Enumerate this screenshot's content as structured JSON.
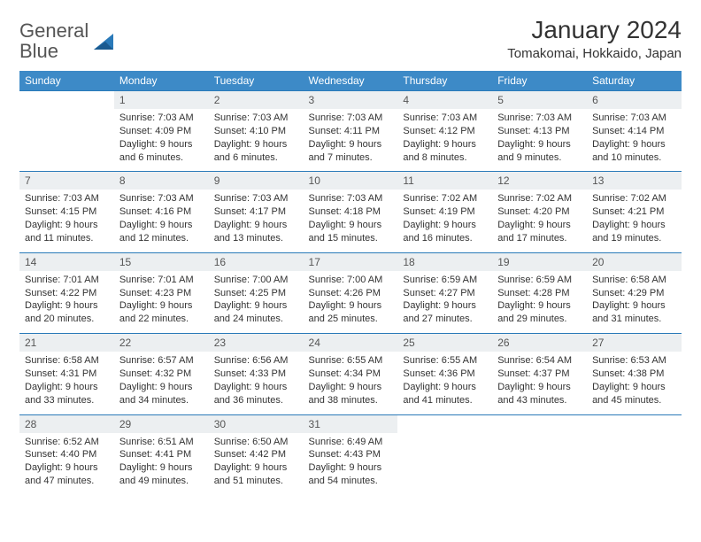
{
  "logo": {
    "general": "General",
    "blue": "Blue"
  },
  "title": "January 2024",
  "location": "Tomakomai, Hokkaido, Japan",
  "colors": {
    "header_bg": "#3d8ac7",
    "accent_line": "#2a7ab9",
    "daynum_bg": "#eceff1",
    "text": "#333333"
  },
  "weekdays": [
    "Sunday",
    "Monday",
    "Tuesday",
    "Wednesday",
    "Thursday",
    "Friday",
    "Saturday"
  ],
  "weeks": [
    [
      null,
      {
        "n": "1",
        "sr": "7:03 AM",
        "ss": "4:09 PM",
        "dl": "9 hours and 6 minutes."
      },
      {
        "n": "2",
        "sr": "7:03 AM",
        "ss": "4:10 PM",
        "dl": "9 hours and 6 minutes."
      },
      {
        "n": "3",
        "sr": "7:03 AM",
        "ss": "4:11 PM",
        "dl": "9 hours and 7 minutes."
      },
      {
        "n": "4",
        "sr": "7:03 AM",
        "ss": "4:12 PM",
        "dl": "9 hours and 8 minutes."
      },
      {
        "n": "5",
        "sr": "7:03 AM",
        "ss": "4:13 PM",
        "dl": "9 hours and 9 minutes."
      },
      {
        "n": "6",
        "sr": "7:03 AM",
        "ss": "4:14 PM",
        "dl": "9 hours and 10 minutes."
      }
    ],
    [
      {
        "n": "7",
        "sr": "7:03 AM",
        "ss": "4:15 PM",
        "dl": "9 hours and 11 minutes."
      },
      {
        "n": "8",
        "sr": "7:03 AM",
        "ss": "4:16 PM",
        "dl": "9 hours and 12 minutes."
      },
      {
        "n": "9",
        "sr": "7:03 AM",
        "ss": "4:17 PM",
        "dl": "9 hours and 13 minutes."
      },
      {
        "n": "10",
        "sr": "7:03 AM",
        "ss": "4:18 PM",
        "dl": "9 hours and 15 minutes."
      },
      {
        "n": "11",
        "sr": "7:02 AM",
        "ss": "4:19 PM",
        "dl": "9 hours and 16 minutes."
      },
      {
        "n": "12",
        "sr": "7:02 AM",
        "ss": "4:20 PM",
        "dl": "9 hours and 17 minutes."
      },
      {
        "n": "13",
        "sr": "7:02 AM",
        "ss": "4:21 PM",
        "dl": "9 hours and 19 minutes."
      }
    ],
    [
      {
        "n": "14",
        "sr": "7:01 AM",
        "ss": "4:22 PM",
        "dl": "9 hours and 20 minutes."
      },
      {
        "n": "15",
        "sr": "7:01 AM",
        "ss": "4:23 PM",
        "dl": "9 hours and 22 minutes."
      },
      {
        "n": "16",
        "sr": "7:00 AM",
        "ss": "4:25 PM",
        "dl": "9 hours and 24 minutes."
      },
      {
        "n": "17",
        "sr": "7:00 AM",
        "ss": "4:26 PM",
        "dl": "9 hours and 25 minutes."
      },
      {
        "n": "18",
        "sr": "6:59 AM",
        "ss": "4:27 PM",
        "dl": "9 hours and 27 minutes."
      },
      {
        "n": "19",
        "sr": "6:59 AM",
        "ss": "4:28 PM",
        "dl": "9 hours and 29 minutes."
      },
      {
        "n": "20",
        "sr": "6:58 AM",
        "ss": "4:29 PM",
        "dl": "9 hours and 31 minutes."
      }
    ],
    [
      {
        "n": "21",
        "sr": "6:58 AM",
        "ss": "4:31 PM",
        "dl": "9 hours and 33 minutes."
      },
      {
        "n": "22",
        "sr": "6:57 AM",
        "ss": "4:32 PM",
        "dl": "9 hours and 34 minutes."
      },
      {
        "n": "23",
        "sr": "6:56 AM",
        "ss": "4:33 PM",
        "dl": "9 hours and 36 minutes."
      },
      {
        "n": "24",
        "sr": "6:55 AM",
        "ss": "4:34 PM",
        "dl": "9 hours and 38 minutes."
      },
      {
        "n": "25",
        "sr": "6:55 AM",
        "ss": "4:36 PM",
        "dl": "9 hours and 41 minutes."
      },
      {
        "n": "26",
        "sr": "6:54 AM",
        "ss": "4:37 PM",
        "dl": "9 hours and 43 minutes."
      },
      {
        "n": "27",
        "sr": "6:53 AM",
        "ss": "4:38 PM",
        "dl": "9 hours and 45 minutes."
      }
    ],
    [
      {
        "n": "28",
        "sr": "6:52 AM",
        "ss": "4:40 PM",
        "dl": "9 hours and 47 minutes."
      },
      {
        "n": "29",
        "sr": "6:51 AM",
        "ss": "4:41 PM",
        "dl": "9 hours and 49 minutes."
      },
      {
        "n": "30",
        "sr": "6:50 AM",
        "ss": "4:42 PM",
        "dl": "9 hours and 51 minutes."
      },
      {
        "n": "31",
        "sr": "6:49 AM",
        "ss": "4:43 PM",
        "dl": "9 hours and 54 minutes."
      },
      null,
      null,
      null
    ]
  ],
  "labels": {
    "sunrise": "Sunrise:",
    "sunset": "Sunset:",
    "daylight": "Daylight:"
  }
}
